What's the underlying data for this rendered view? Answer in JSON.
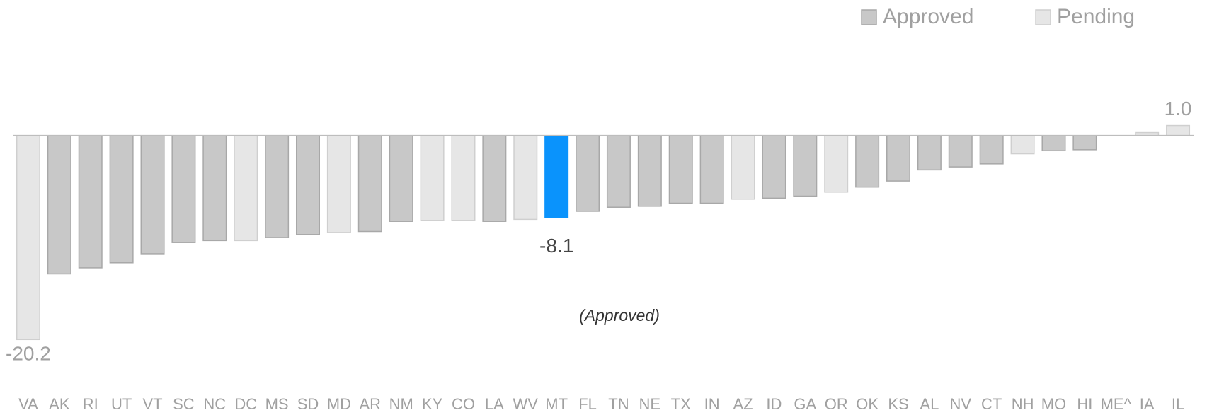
{
  "chart_data": {
    "type": "bar",
    "categories": [
      "VA",
      "AK",
      "RI",
      "UT",
      "VT",
      "SC",
      "NC",
      "DC",
      "MS",
      "SD",
      "MD",
      "AR",
      "NM",
      "KY",
      "CO",
      "LA",
      "WV",
      "MT",
      "FL",
      "TN",
      "NE",
      "TX",
      "IN",
      "AZ",
      "ID",
      "GA",
      "OR",
      "OK",
      "KS",
      "AL",
      "NV",
      "CT",
      "NH",
      "MO",
      "HI",
      "ME^",
      "IA",
      "IL"
    ],
    "series": [
      {
        "name": "Approved",
        "color": "#c8c8c8",
        "values": [
          null,
          -13.7,
          -13.1,
          -12.6,
          -11.7,
          -10.6,
          -10.4,
          null,
          -10.1,
          -9.8,
          null,
          -9.5,
          -8.5,
          null,
          null,
          -8.5,
          null,
          -8.1,
          -7.5,
          -7.1,
          -7.0,
          -6.7,
          -6.7,
          null,
          -6.2,
          -6.0,
          null,
          -5.1,
          -4.5,
          -3.4,
          -3.1,
          -2.8,
          null,
          -1.5,
          -1.4,
          null,
          null,
          null
        ],
        "value_labels": [
          null,
          null,
          null,
          null,
          null,
          null,
          null,
          null,
          null,
          null,
          null,
          null,
          null,
          null,
          null,
          null,
          null,
          "-8.1",
          null,
          null,
          null,
          null,
          null,
          null,
          null,
          null,
          null,
          null,
          null,
          null,
          null,
          null,
          null,
          null,
          null,
          null,
          null,
          null
        ]
      },
      {
        "name": "Pending",
        "color": "#e6e6e6",
        "values": [
          -20.2,
          null,
          null,
          null,
          null,
          null,
          null,
          -10.4,
          null,
          null,
          -9.6,
          null,
          null,
          -8.4,
          -8.4,
          null,
          -8.3,
          null,
          null,
          null,
          null,
          null,
          null,
          -6.3,
          null,
          null,
          -5.6,
          null,
          null,
          null,
          null,
          null,
          -1.8,
          null,
          null,
          null,
          0.3,
          1.0
        ],
        "value_labels": [
          "-20.2",
          null,
          null,
          null,
          null,
          null,
          null,
          null,
          null,
          null,
          null,
          null,
          null,
          null,
          null,
          null,
          null,
          null,
          null,
          null,
          null,
          null,
          null,
          null,
          null,
          null,
          null,
          null,
          null,
          null,
          null,
          null,
          null,
          null,
          null,
          null,
          null,
          "1.0"
        ]
      }
    ],
    "highlight": {
      "category": "MT",
      "color": "#0a93fc"
    },
    "annotation": "(Approved)",
    "ylim": [
      -22,
      3
    ],
    "legend": "top-right"
  }
}
